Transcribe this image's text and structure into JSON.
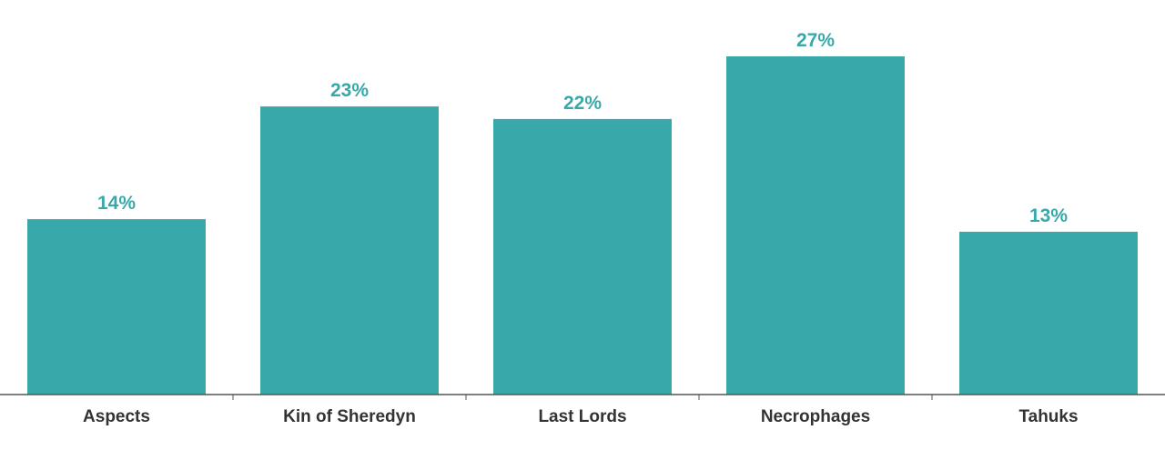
{
  "chart_data": {
    "type": "bar",
    "categories": [
      "Aspects",
      "Kin of Sheredyn",
      "Last Lords",
      "Necrophages",
      "Tahuks"
    ],
    "values": [
      14,
      23,
      22,
      27,
      13
    ],
    "data_labels": [
      "14%",
      "23%",
      "22%",
      "27%",
      "13%"
    ],
    "title": "",
    "xlabel": "",
    "ylabel": "",
    "ylim": [
      0,
      28.8
    ],
    "grid": false,
    "legend": "none",
    "colors": {
      "bar": "#38a8aa",
      "label": "#38a8aa",
      "axis": "#555555",
      "category_text": "#333333"
    }
  }
}
